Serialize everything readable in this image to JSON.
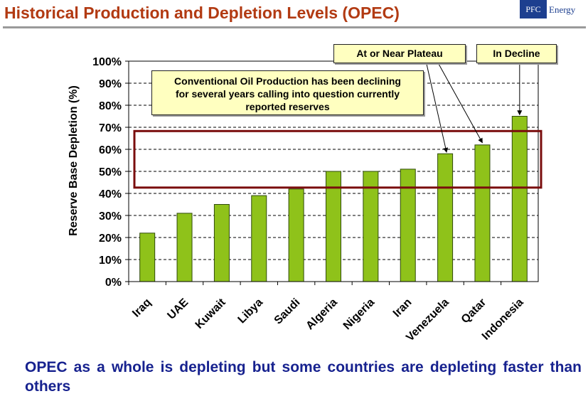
{
  "header": {
    "title": "Historical Production and Depletion Levels (OPEC)",
    "logo_mark": "PFC",
    "logo_word": "Energy"
  },
  "chart_data": {
    "type": "bar",
    "title": "",
    "xlabel": "",
    "ylabel": "Reserve Base Depletion (%)",
    "categories": [
      "Iraq",
      "UAE",
      "Kuwait",
      "Libya",
      "Saudi",
      "Algeria",
      "Nigeria",
      "Iran",
      "Venezuela",
      "Qatar",
      "Indonesia"
    ],
    "values": [
      22,
      31,
      35,
      39,
      42,
      50,
      50,
      51,
      58,
      62,
      75
    ],
    "ylim": [
      0,
      100
    ],
    "yticks": [
      0,
      10,
      20,
      30,
      40,
      50,
      60,
      70,
      80,
      90,
      100
    ],
    "ytick_labels": [
      "0%",
      "10%",
      "20%",
      "30%",
      "40%",
      "50%",
      "60%",
      "70%",
      "80%",
      "90%",
      "100%"
    ],
    "grid": true,
    "bar_color": "#8fc21a",
    "highlight_band": [
      42,
      67
    ],
    "highlight_color": "#7a0d0d",
    "annotations": [
      {
        "text": "At or Near Plateau",
        "target": "Venezuela"
      },
      {
        "text": "In Decline",
        "target": "Indonesia"
      },
      {
        "text": "Conventional Oil Production has been declining for several years calling into question currently reported reserves"
      }
    ]
  },
  "callouts": {
    "conventional": [
      "Conventional Oil Production has been declining",
      "for several years calling into question currently",
      "reported reserves"
    ],
    "plateau": "At or Near Plateau",
    "decline": "In Decline"
  },
  "footer": {
    "text": "OPEC as a whole is depleting but some countries are depleting faster than others"
  }
}
